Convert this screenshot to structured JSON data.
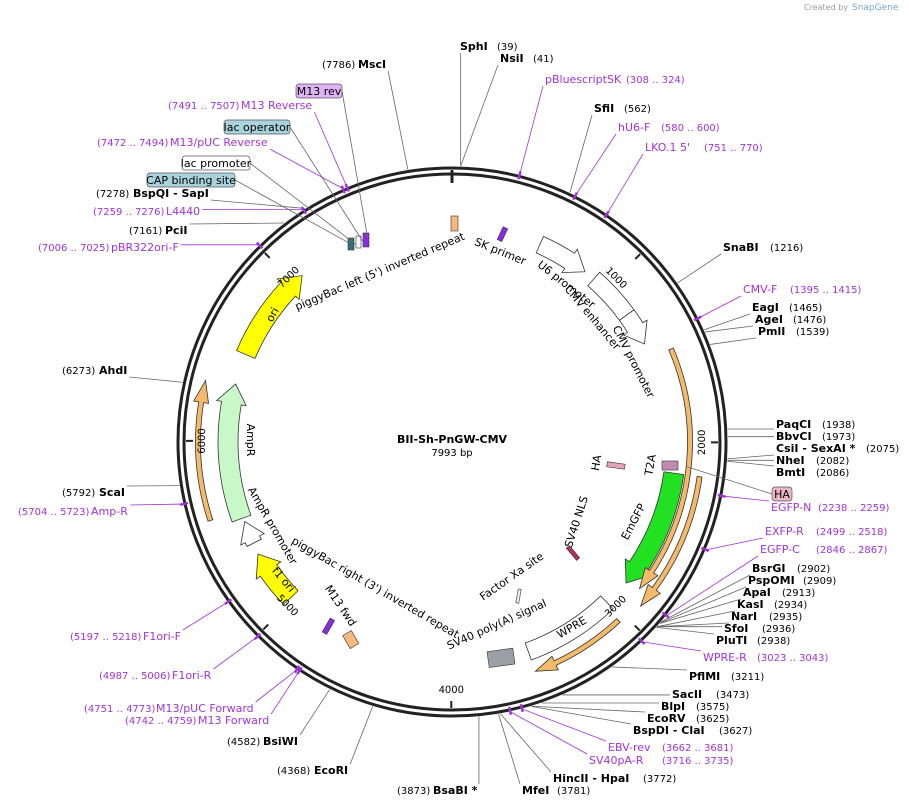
{
  "header": {
    "created_by": "Created by",
    "brand": "SnapGene"
  },
  "map": {
    "name": "BII-Sh-PnGW-CMV",
    "length": "7993 bp",
    "ticks": [
      "1000",
      "2000",
      "3000",
      "4000",
      "5000",
      "6000",
      "7000"
    ]
  },
  "enzymes": [
    {
      "name": "SphI",
      "position": "(39)"
    },
    {
      "name": "NsiI",
      "position": "(41)"
    },
    {
      "name": "SfiI",
      "position": "(562)"
    },
    {
      "name": "SnaBI",
      "position": "(1216)"
    },
    {
      "name": "EagI",
      "position": "(1465)"
    },
    {
      "name": "AgeI",
      "position": "(1476)"
    },
    {
      "name": "PmlI",
      "position": "(1539)"
    },
    {
      "name": "PaqCI",
      "position": "(1938)"
    },
    {
      "name": "BbvCI",
      "position": "(1973)"
    },
    {
      "name": "CsiI  - SexAI *",
      "position": "(2075)"
    },
    {
      "name": "NheI",
      "position": "(2082)"
    },
    {
      "name": "BmtI",
      "position": "(2086)"
    },
    {
      "name": "BsrGI",
      "position": "(2902)"
    },
    {
      "name": "PspOMI",
      "position": "(2909)"
    },
    {
      "name": "ApaI",
      "position": "(2913)"
    },
    {
      "name": "KasI",
      "position": "(2934)"
    },
    {
      "name": "NarI",
      "position": "(2935)"
    },
    {
      "name": "SfoI",
      "position": "(2936)"
    },
    {
      "name": "PluTI",
      "position": "(2938)"
    },
    {
      "name": "PflMI",
      "position": "(3211)"
    },
    {
      "name": "SacII",
      "position": "(3473)"
    },
    {
      "name": "BlpI",
      "position": "(3575)"
    },
    {
      "name": "EcoRV",
      "position": "(3625)"
    },
    {
      "name": "BspDI  - ClaI",
      "position": "(3627)"
    },
    {
      "name": "HincII  - HpaI",
      "position": "(3772)"
    },
    {
      "name": "MfeI",
      "position": "(3781)"
    },
    {
      "name": "BsaBI *",
      "position": "(3873)"
    },
    {
      "name": "EcoRI",
      "position": "(4368)"
    },
    {
      "name": "BsiWI",
      "position": "(4582)"
    },
    {
      "name": "ScaI",
      "position": "(5792)"
    },
    {
      "name": "AhdI",
      "position": "(6273)"
    },
    {
      "name": "PciI",
      "position": "(7161)"
    },
    {
      "name": "BspQI  - SapI",
      "position": "(7278)"
    },
    {
      "name": "MscI",
      "position": "(7786)"
    }
  ],
  "primers": [
    {
      "name": "pBluescriptSK",
      "range": "(308 .. 324)"
    },
    {
      "name": "hU6-F",
      "range": "(580 .. 600)"
    },
    {
      "name": "LKO.1 5'",
      "range": "(751 .. 770)"
    },
    {
      "name": "CMV-F",
      "range": "(1395 .. 1415)"
    },
    {
      "name": "EGFP-N",
      "range": "(2238 .. 2259)"
    },
    {
      "name": "EXFP-R",
      "range": "(2499 .. 2518)"
    },
    {
      "name": "EGFP-C",
      "range": "(2846 .. 2867)"
    },
    {
      "name": "WPRE-R",
      "range": "(3023 .. 3043)"
    },
    {
      "name": "EBV-rev",
      "range": "(3662 .. 3681)"
    },
    {
      "name": "SV40pA-R",
      "range": "(3716 .. 3735)"
    },
    {
      "name": "F1ori-F",
      "range": "(5197 .. 5218)"
    },
    {
      "name": "F1ori-R",
      "range": "(4987 .. 5006)"
    },
    {
      "name": "M13/pUC Forward",
      "range": "(4751 .. 4773)"
    },
    {
      "name": "M13 Forward",
      "range": "(4742 .. 4759)"
    },
    {
      "name": "Amp-R",
      "range": "(5704 .. 5723)"
    },
    {
      "name": "pBR322ori-F",
      "range": "(7006 .. 7025)"
    },
    {
      "name": "L4440",
      "range": "(7259 .. 7276)"
    },
    {
      "name": "M13/pUC Reverse",
      "range": "(7472 .. 7494)"
    },
    {
      "name": "M13 Reverse",
      "range": "(7491 .. 7507)"
    }
  ],
  "boxed_labels": [
    "M13 rev",
    "lac operator",
    "lac promoter",
    "CAP binding site",
    "HA"
  ],
  "features": [
    "piggyBac left (5') inverted repeat",
    "SK primer",
    "U6 promoter",
    "CMV enhancer",
    "CMV promoter",
    "HA",
    "T2A",
    "SV40 NLS",
    "EmGFP",
    "Factor Xa site",
    "WPRE",
    "SV40 poly(A) signal",
    "piggyBac right (3') inverted repeat",
    "M13 fwd",
    "f1 ori",
    "AmpR promoter",
    "AmpR",
    "ori"
  ]
}
